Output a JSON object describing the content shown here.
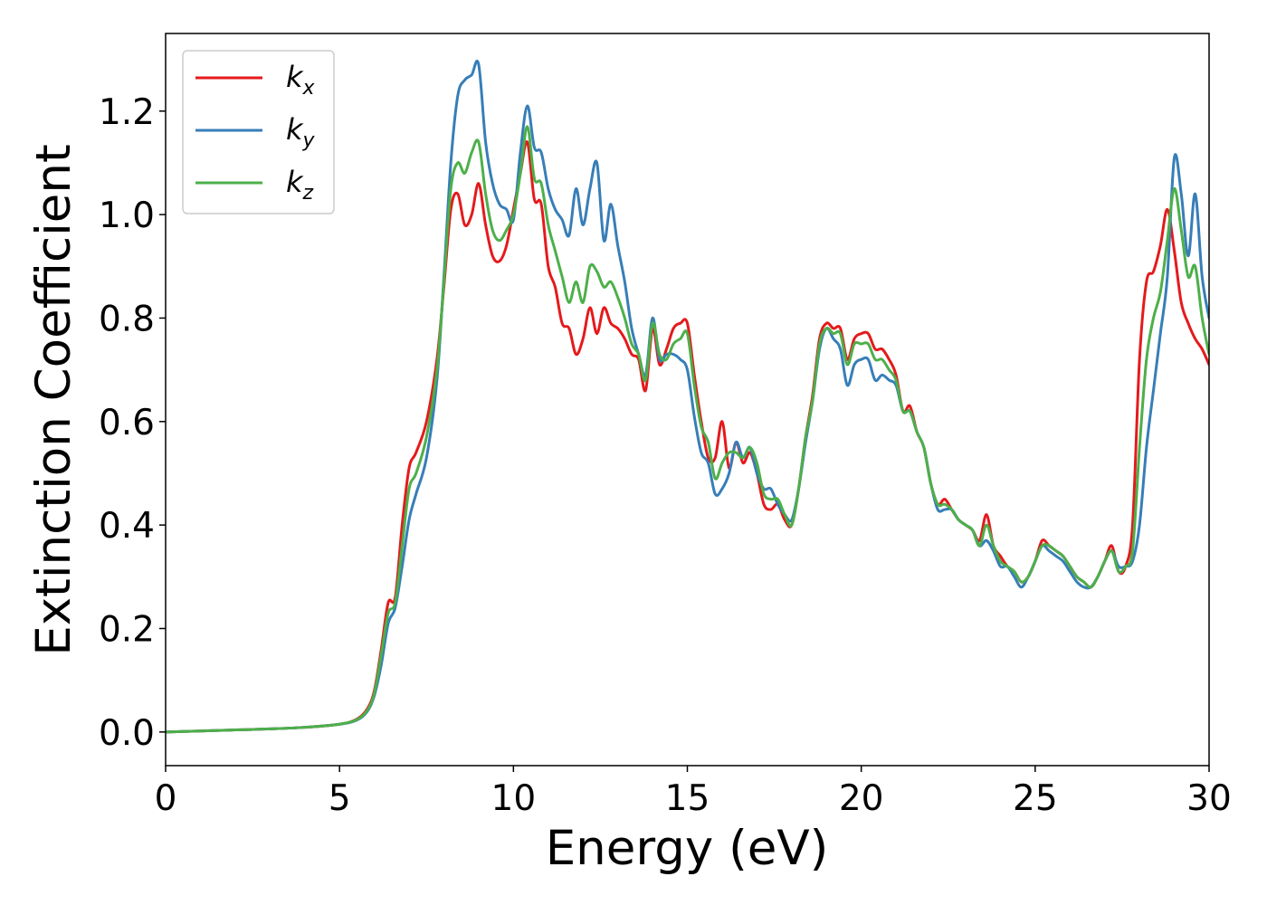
{
  "chart_data": {
    "type": "line",
    "xlabel": "Energy (eV)",
    "ylabel": "Extinction Coefficient",
    "xlim": [
      0,
      30
    ],
    "ylim": [
      -0.065,
      1.35
    ],
    "xticks": [
      0,
      5,
      10,
      15,
      20,
      25,
      30
    ],
    "xtick_labels": [
      "0",
      "5",
      "10",
      "15",
      "20",
      "25",
      "30"
    ],
    "yticks": [
      0.0,
      0.2,
      0.4,
      0.6,
      0.8,
      1.0,
      1.2
    ],
    "ytick_labels": [
      "0.0",
      "0.2",
      "0.4",
      "0.6",
      "0.8",
      "1.0",
      "1.2"
    ],
    "grid": false,
    "legend_position": "top-left",
    "x": [
      0,
      1,
      2,
      3,
      4,
      5,
      5.5,
      5.8,
      6.0,
      6.2,
      6.4,
      6.6,
      6.8,
      7.0,
      7.2,
      7.5,
      7.8,
      8.0,
      8.2,
      8.4,
      8.6,
      8.8,
      9.0,
      9.2,
      9.4,
      9.6,
      9.8,
      10.0,
      10.2,
      10.4,
      10.6,
      10.8,
      11.0,
      11.2,
      11.4,
      11.6,
      11.8,
      12.0,
      12.2,
      12.4,
      12.6,
      12.8,
      13.0,
      13.2,
      13.4,
      13.6,
      13.8,
      14.0,
      14.2,
      14.4,
      14.6,
      14.8,
      15.0,
      15.2,
      15.4,
      15.6,
      15.8,
      16.0,
      16.2,
      16.4,
      16.6,
      16.8,
      17.0,
      17.2,
      17.4,
      17.6,
      17.8,
      18.0,
      18.2,
      18.4,
      18.6,
      18.8,
      19.0,
      19.2,
      19.4,
      19.6,
      19.8,
      20.0,
      20.2,
      20.4,
      20.6,
      20.8,
      21.0,
      21.2,
      21.4,
      21.6,
      21.8,
      22.0,
      22.2,
      22.4,
      22.6,
      22.8,
      23.0,
      23.2,
      23.4,
      23.6,
      23.8,
      24.0,
      24.2,
      24.4,
      24.6,
      24.8,
      25.0,
      25.2,
      25.4,
      25.6,
      25.8,
      26.0,
      26.2,
      26.4,
      26.6,
      26.8,
      27.0,
      27.2,
      27.4,
      27.6,
      27.8,
      28.0,
      28.2,
      28.4,
      28.6,
      28.8,
      29.0,
      29.2,
      29.4,
      29.6,
      29.8,
      30.0
    ],
    "series": [
      {
        "name": "k_x",
        "label_base": "k",
        "label_sub": "x",
        "color": "#e41a1c",
        "values": [
          0.0,
          0.002,
          0.004,
          0.006,
          0.009,
          0.015,
          0.025,
          0.045,
          0.08,
          0.16,
          0.25,
          0.26,
          0.4,
          0.51,
          0.54,
          0.6,
          0.72,
          0.86,
          1.01,
          1.04,
          0.98,
          1.0,
          1.06,
          0.98,
          0.92,
          0.91,
          0.94,
          1.01,
          1.08,
          1.14,
          1.03,
          1.02,
          0.9,
          0.86,
          0.79,
          0.78,
          0.73,
          0.76,
          0.82,
          0.77,
          0.82,
          0.79,
          0.78,
          0.76,
          0.73,
          0.72,
          0.66,
          0.78,
          0.71,
          0.74,
          0.78,
          0.79,
          0.79,
          0.69,
          0.6,
          0.53,
          0.53,
          0.6,
          0.51,
          0.56,
          0.52,
          0.54,
          0.5,
          0.44,
          0.43,
          0.44,
          0.41,
          0.4,
          0.47,
          0.57,
          0.65,
          0.76,
          0.79,
          0.78,
          0.78,
          0.72,
          0.76,
          0.77,
          0.77,
          0.74,
          0.74,
          0.72,
          0.69,
          0.62,
          0.63,
          0.58,
          0.55,
          0.48,
          0.44,
          0.45,
          0.43,
          0.41,
          0.4,
          0.39,
          0.37,
          0.42,
          0.36,
          0.34,
          0.32,
          0.31,
          0.29,
          0.3,
          0.33,
          0.37,
          0.36,
          0.35,
          0.34,
          0.32,
          0.3,
          0.29,
          0.28,
          0.3,
          0.33,
          0.36,
          0.31,
          0.32,
          0.4,
          0.72,
          0.87,
          0.89,
          0.94,
          1.01,
          0.93,
          0.83,
          0.79,
          0.76,
          0.74,
          0.71
        ]
      },
      {
        "name": "k_y",
        "label_base": "k",
        "label_sub": "y",
        "color": "#377eb8",
        "values": [
          0.0,
          0.002,
          0.004,
          0.006,
          0.009,
          0.015,
          0.023,
          0.04,
          0.07,
          0.13,
          0.21,
          0.24,
          0.32,
          0.41,
          0.46,
          0.53,
          0.68,
          0.88,
          1.1,
          1.23,
          1.26,
          1.27,
          1.29,
          1.14,
          1.06,
          1.02,
          1.01,
          0.99,
          1.12,
          1.21,
          1.13,
          1.12,
          1.05,
          1.01,
          0.99,
          0.96,
          1.05,
          0.98,
          1.05,
          1.1,
          0.95,
          1.02,
          0.94,
          0.87,
          0.78,
          0.73,
          0.69,
          0.8,
          0.72,
          0.73,
          0.73,
          0.72,
          0.7,
          0.61,
          0.54,
          0.52,
          0.46,
          0.47,
          0.5,
          0.56,
          0.53,
          0.55,
          0.5,
          0.47,
          0.47,
          0.44,
          0.42,
          0.41,
          0.47,
          0.56,
          0.64,
          0.74,
          0.78,
          0.76,
          0.74,
          0.67,
          0.71,
          0.72,
          0.72,
          0.68,
          0.69,
          0.68,
          0.67,
          0.62,
          0.62,
          0.58,
          0.55,
          0.48,
          0.43,
          0.43,
          0.43,
          0.41,
          0.4,
          0.39,
          0.36,
          0.37,
          0.35,
          0.32,
          0.32,
          0.3,
          0.28,
          0.3,
          0.33,
          0.36,
          0.35,
          0.34,
          0.33,
          0.31,
          0.29,
          0.28,
          0.28,
          0.3,
          0.33,
          0.35,
          0.32,
          0.32,
          0.33,
          0.4,
          0.55,
          0.66,
          0.77,
          0.88,
          1.11,
          1.04,
          0.92,
          1.04,
          0.88,
          0.8
        ]
      },
      {
        "name": "k_z",
        "label_base": "k",
        "label_sub": "z",
        "color": "#4daf4a",
        "values": [
          0.0,
          0.002,
          0.004,
          0.006,
          0.009,
          0.015,
          0.024,
          0.042,
          0.075,
          0.15,
          0.23,
          0.25,
          0.36,
          0.47,
          0.5,
          0.57,
          0.7,
          0.87,
          1.05,
          1.1,
          1.08,
          1.12,
          1.14,
          1.04,
          0.97,
          0.95,
          0.97,
          1.0,
          1.08,
          1.17,
          1.07,
          1.06,
          0.98,
          0.93,
          0.88,
          0.83,
          0.87,
          0.83,
          0.9,
          0.89,
          0.86,
          0.87,
          0.84,
          0.8,
          0.75,
          0.73,
          0.68,
          0.79,
          0.73,
          0.72,
          0.75,
          0.76,
          0.77,
          0.67,
          0.59,
          0.56,
          0.49,
          0.52,
          0.54,
          0.54,
          0.53,
          0.55,
          0.52,
          0.46,
          0.45,
          0.45,
          0.42,
          0.4,
          0.47,
          0.57,
          0.64,
          0.75,
          0.78,
          0.77,
          0.77,
          0.71,
          0.75,
          0.75,
          0.75,
          0.72,
          0.72,
          0.7,
          0.68,
          0.62,
          0.62,
          0.58,
          0.55,
          0.48,
          0.44,
          0.44,
          0.43,
          0.41,
          0.4,
          0.39,
          0.36,
          0.4,
          0.36,
          0.33,
          0.32,
          0.31,
          0.29,
          0.3,
          0.33,
          0.36,
          0.36,
          0.35,
          0.34,
          0.32,
          0.3,
          0.29,
          0.28,
          0.3,
          0.33,
          0.35,
          0.31,
          0.32,
          0.35,
          0.55,
          0.72,
          0.8,
          0.85,
          0.95,
          1.05,
          0.97,
          0.88,
          0.9,
          0.8,
          0.73
        ]
      }
    ]
  }
}
